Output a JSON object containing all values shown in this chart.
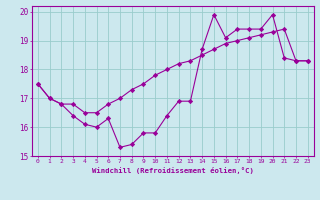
{
  "xlabel": "Windchill (Refroidissement éolien,°C)",
  "bg_color": "#cce8ee",
  "line_color": "#990099",
  "grid_color": "#99cccc",
  "hours": [
    0,
    1,
    2,
    3,
    4,
    5,
    6,
    7,
    8,
    9,
    10,
    11,
    12,
    13,
    14,
    15,
    16,
    17,
    18,
    19,
    20,
    21,
    22,
    23
  ],
  "curve1": [
    17.5,
    17.0,
    16.8,
    16.4,
    16.1,
    16.0,
    16.3,
    15.3,
    15.4,
    15.8,
    15.8,
    16.4,
    16.9,
    16.9,
    18.7,
    19.9,
    19.1,
    19.4,
    19.4,
    19.4,
    19.9,
    18.4,
    18.3,
    18.3
  ],
  "curve2": [
    17.5,
    17.0,
    16.8,
    16.8,
    16.5,
    16.5,
    16.8,
    17.0,
    17.3,
    17.5,
    17.8,
    18.0,
    18.2,
    18.3,
    18.5,
    18.7,
    18.9,
    19.0,
    19.1,
    19.2,
    19.3,
    19.4,
    18.3,
    18.3
  ],
  "ylim": [
    15.0,
    20.2
  ],
  "xlim": [
    -0.5,
    23.5
  ],
  "yticks": [
    15,
    16,
    17,
    18,
    19,
    20
  ],
  "xticks": [
    0,
    1,
    2,
    3,
    4,
    5,
    6,
    7,
    8,
    9,
    10,
    11,
    12,
    13,
    14,
    15,
    16,
    17,
    18,
    19,
    20,
    21,
    22,
    23
  ],
  "xtick_labels": [
    "0",
    "1",
    "2",
    "3",
    "4",
    "5",
    "6",
    "7",
    "8",
    "9",
    "10",
    "11",
    "12",
    "13",
    "14",
    "15",
    "16",
    "17",
    "18",
    "19",
    "20",
    "21",
    "22",
    "23"
  ]
}
